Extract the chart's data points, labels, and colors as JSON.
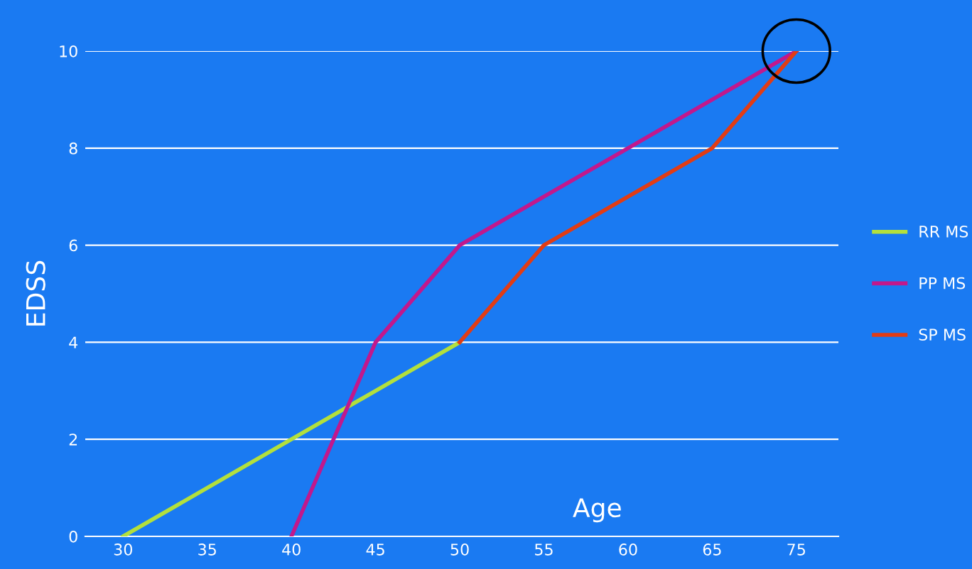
{
  "chart_data": {
    "type": "line",
    "xlabel": "Age",
    "ylabel": "EDSS",
    "categories": [
      "30",
      "35",
      "40",
      "45",
      "50",
      "55",
      "60",
      "65",
      "75"
    ],
    "ylim": [
      0,
      10
    ],
    "yticks": [
      0,
      2,
      4,
      6,
      8,
      10
    ],
    "grid": "y",
    "legend": "right",
    "marker": "none",
    "line_style": "solid",
    "series": [
      {
        "name": "RR MS",
        "color": "#b3e03c",
        "values": [
          0,
          1,
          2,
          3,
          4,
          null,
          null,
          null,
          null
        ]
      },
      {
        "name": "PP MS",
        "color": "#c2188c",
        "values": [
          null,
          null,
          0,
          4,
          6,
          7,
          8,
          9,
          10
        ]
      },
      {
        "name": "SP MS",
        "color": "#e23c14",
        "values": [
          null,
          null,
          null,
          null,
          4,
          6,
          7,
          8,
          10
        ]
      }
    ]
  }
}
